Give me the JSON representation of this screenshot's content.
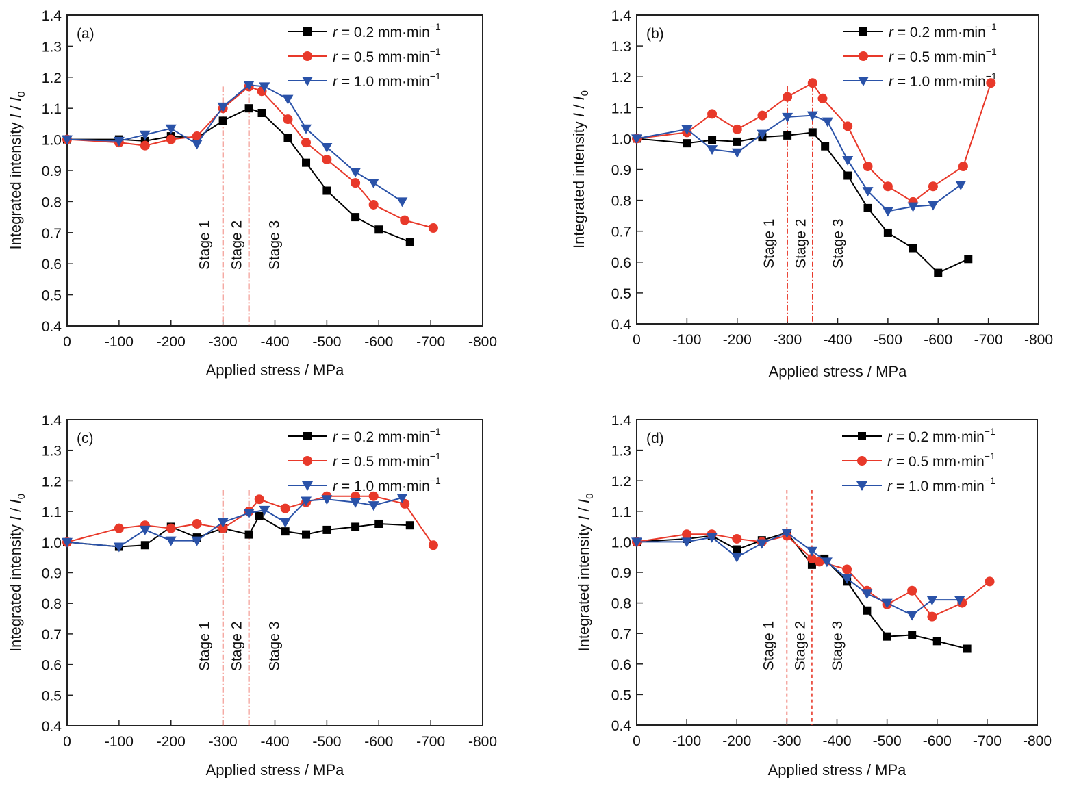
{
  "chart_data": [
    {
      "type": "line",
      "panel_label": "(a)",
      "xlabel": "Applied stress / MPa",
      "ylabel": "Integrated intensity I / I0",
      "xlim": [
        0,
        -800
      ],
      "ylim": [
        0.4,
        1.4
      ],
      "xticks": [
        0,
        -100,
        -200,
        -300,
        -400,
        -500,
        -600,
        -700,
        -800
      ],
      "xtick_labels": [
        "0",
        "-100",
        "-200",
        "-300",
        "-400",
        "-500",
        "-600",
        "-700",
        "-800"
      ],
      "yticks": [
        0.4,
        0.5,
        0.6,
        0.7,
        0.8,
        0.9,
        1.0,
        1.1,
        1.2,
        1.3,
        1.4
      ],
      "ytick_labels": [
        "0.4",
        "0.5",
        "0.6",
        "0.7",
        "0.8",
        "0.9",
        "1.0",
        "1.1",
        "1.2",
        "1.3",
        "1.4"
      ],
      "grid": false,
      "legend_position": "top-right",
      "stage_lines": [
        -300,
        -350
      ],
      "stage_line_style": "dash-dot",
      "stage_labels": [
        "Stage 1",
        "Stage 2",
        "Stage 3"
      ],
      "series": [
        {
          "name": "r = 0.2 mm·min⁻¹",
          "color": "#000000",
          "marker": "square",
          "x": [
            0,
            -100,
            -150,
            -200,
            -250,
            -300,
            -350,
            -375,
            -425,
            -460,
            -500,
            -555,
            -600,
            -660
          ],
          "y": [
            1.0,
            1.0,
            0.995,
            1.01,
            1.005,
            1.06,
            1.1,
            1.085,
            1.005,
            0.925,
            0.835,
            0.75,
            0.71,
            0.67
          ]
        },
        {
          "name": "r = 0.5 mm·min⁻¹",
          "color": "#e8392a",
          "marker": "circle",
          "x": [
            0,
            -100,
            -150,
            -200,
            -250,
            -300,
            -350,
            -375,
            -425,
            -460,
            -500,
            -555,
            -590,
            -650,
            -705
          ],
          "y": [
            1.0,
            0.99,
            0.98,
            1.0,
            1.01,
            1.1,
            1.17,
            1.155,
            1.065,
            0.99,
            0.935,
            0.86,
            0.79,
            0.74,
            0.715
          ]
        },
        {
          "name": "r = 1.0 mm·min⁻¹",
          "color": "#2a52a8",
          "marker": "triangle-down",
          "x": [
            0,
            -100,
            -150,
            -200,
            -250,
            -300,
            -350,
            -380,
            -425,
            -460,
            -500,
            -555,
            -590,
            -645
          ],
          "y": [
            1.0,
            0.995,
            1.015,
            1.035,
            0.985,
            1.105,
            1.175,
            1.17,
            1.13,
            1.035,
            0.975,
            0.895,
            0.86,
            0.8
          ]
        }
      ]
    },
    {
      "type": "line",
      "panel_label": "(b)",
      "xlabel": "Applied stress / MPa",
      "ylabel": "Integrated intensity I / I0",
      "xlim": [
        0,
        -800
      ],
      "ylim": [
        0.4,
        1.4
      ],
      "xticks": [
        0,
        -100,
        -200,
        -300,
        -400,
        -500,
        -600,
        -700,
        -800
      ],
      "xtick_labels": [
        "0",
        "-100",
        "-200",
        "-300",
        "-400",
        "-500",
        "-600",
        "-700",
        "-800"
      ],
      "yticks": [
        0.4,
        0.5,
        0.6,
        0.7,
        0.8,
        0.9,
        1.0,
        1.1,
        1.2,
        1.3,
        1.4
      ],
      "ytick_labels": [
        "0.4",
        "0.5",
        "0.6",
        "0.7",
        "0.8",
        "0.9",
        "1.0",
        "1.1",
        "1.2",
        "1.3",
        "1.4"
      ],
      "grid": false,
      "legend_position": "top-right",
      "stage_lines": [
        -300,
        -350
      ],
      "stage_line_style": "dash-dot",
      "stage_labels": [
        "Stage 1",
        "Stage 2",
        "Stage 3"
      ],
      "series": [
        {
          "name": "r = 0.2 mm·min⁻¹",
          "color": "#000000",
          "marker": "square",
          "x": [
            0,
            -100,
            -150,
            -200,
            -250,
            -300,
            -350,
            -375,
            -420,
            -460,
            -500,
            -550,
            -600,
            -660
          ],
          "y": [
            1.0,
            0.985,
            0.995,
            0.99,
            1.005,
            1.01,
            1.02,
            0.975,
            0.88,
            0.775,
            0.695,
            0.645,
            0.565,
            0.61
          ]
        },
        {
          "name": "r = 0.5 mm·min⁻¹",
          "color": "#e8392a",
          "marker": "circle",
          "x": [
            0,
            -100,
            -150,
            -200,
            -250,
            -300,
            -350,
            -370,
            -420,
            -460,
            -500,
            -550,
            -590,
            -650,
            -705
          ],
          "y": [
            1.0,
            1.02,
            1.08,
            1.03,
            1.075,
            1.135,
            1.18,
            1.13,
            1.04,
            0.91,
            0.845,
            0.795,
            0.845,
            0.91,
            1.18
          ]
        },
        {
          "name": "r = 1.0 mm·min⁻¹",
          "color": "#2a52a8",
          "marker": "triangle-down",
          "x": [
            0,
            -100,
            -150,
            -200,
            -250,
            -300,
            -350,
            -380,
            -420,
            -460,
            -500,
            -550,
            -590,
            -645
          ],
          "y": [
            1.0,
            1.03,
            0.965,
            0.955,
            1.015,
            1.07,
            1.075,
            1.055,
            0.93,
            0.83,
            0.765,
            0.78,
            0.785,
            0.85
          ]
        }
      ]
    },
    {
      "type": "line",
      "panel_label": "(c)",
      "xlabel": "Applied stress / MPa",
      "ylabel": "Integrated intensity I / I0",
      "xlim": [
        0,
        -800
      ],
      "ylim": [
        0.4,
        1.4
      ],
      "xticks": [
        0,
        -100,
        -200,
        -300,
        -400,
        -500,
        -600,
        -700,
        -800
      ],
      "xtick_labels": [
        "0",
        "-100",
        "-200",
        "-300",
        "-400",
        "-500",
        "-600",
        "-700",
        "-800"
      ],
      "yticks": [
        0.4,
        0.5,
        0.6,
        0.7,
        0.8,
        0.9,
        1.0,
        1.1,
        1.2,
        1.3,
        1.4
      ],
      "ytick_labels": [
        "0.4",
        "0.5",
        "0.6",
        "0.7",
        "0.8",
        "0.9",
        "1.0",
        "1.1",
        "1.2",
        "1.3",
        "1.4"
      ],
      "grid": false,
      "legend_position": "top-right",
      "stage_lines": [
        -300,
        -350
      ],
      "stage_line_style": "dash-dot",
      "stage_labels": [
        "Stage 1",
        "Stage 2",
        "Stage 3"
      ],
      "series": [
        {
          "name": "r = 0.2 mm·min⁻¹",
          "color": "#000000",
          "marker": "square",
          "x": [
            0,
            -100,
            -150,
            -200,
            -250,
            -300,
            -350,
            -370,
            -420,
            -460,
            -500,
            -555,
            -600,
            -660
          ],
          "y": [
            1.0,
            0.985,
            0.99,
            1.05,
            1.015,
            1.045,
            1.025,
            1.085,
            1.035,
            1.025,
            1.04,
            1.05,
            1.06,
            1.055
          ]
        },
        {
          "name": "r = 0.5 mm·min⁻¹",
          "color": "#e8392a",
          "marker": "circle",
          "x": [
            0,
            -100,
            -150,
            -200,
            -250,
            -300,
            -350,
            -370,
            -420,
            -460,
            -500,
            -555,
            -590,
            -650,
            -705
          ],
          "y": [
            1.0,
            1.045,
            1.055,
            1.045,
            1.06,
            1.045,
            1.1,
            1.14,
            1.11,
            1.13,
            1.15,
            1.15,
            1.15,
            1.125,
            0.99
          ]
        },
        {
          "name": "r = 1.0 mm·min⁻¹",
          "color": "#2a52a8",
          "marker": "triangle-down",
          "x": [
            0,
            -100,
            -150,
            -200,
            -250,
            -300,
            -350,
            -380,
            -420,
            -460,
            -500,
            -555,
            -590,
            -645
          ],
          "y": [
            1.0,
            0.985,
            1.04,
            1.005,
            1.005,
            1.065,
            1.095,
            1.105,
            1.065,
            1.135,
            1.14,
            1.13,
            1.12,
            1.145
          ]
        }
      ]
    },
    {
      "type": "line",
      "panel_label": "(d)",
      "xlabel": "Applied stress / MPa",
      "ylabel": "Integrated intensity I / I0",
      "xlim": [
        0,
        -800
      ],
      "ylim": [
        0.4,
        1.4
      ],
      "xticks": [
        0,
        -100,
        -200,
        -300,
        -400,
        -500,
        -600,
        -700,
        -800
      ],
      "xtick_labels": [
        "0",
        "-100",
        "-200",
        "-300",
        "-400",
        "-500",
        "-600",
        "-700",
        "-800"
      ],
      "yticks": [
        0.4,
        0.5,
        0.6,
        0.7,
        0.8,
        0.9,
        1.0,
        1.1,
        1.2,
        1.3,
        1.4
      ],
      "ytick_labels": [
        "0.4",
        "0.5",
        "0.6",
        "0.7",
        "0.8",
        "0.9",
        "1.0",
        "1.1",
        "1.2",
        "1.3",
        "1.4"
      ],
      "grid": false,
      "legend_position": "top-right",
      "stage_lines": [
        -300,
        -350
      ],
      "stage_line_style": "dashed",
      "stage_labels": [
        "Stage 1",
        "Stage 2",
        "Stage 3"
      ],
      "series": [
        {
          "name": "r = 0.2 mm·min⁻¹",
          "color": "#000000",
          "marker": "square",
          "x": [
            0,
            -100,
            -150,
            -200,
            -250,
            -300,
            -350,
            -375,
            -420,
            -460,
            -500,
            -550,
            -600,
            -660
          ],
          "y": [
            1.0,
            1.01,
            1.02,
            0.975,
            1.005,
            1.03,
            0.925,
            0.945,
            0.87,
            0.775,
            0.69,
            0.695,
            0.675,
            0.65
          ]
        },
        {
          "name": "r = 0.5 mm·min⁻¹",
          "color": "#e8392a",
          "marker": "circle",
          "x": [
            0,
            -100,
            -150,
            -200,
            -250,
            -300,
            -350,
            -365,
            -420,
            -460,
            -500,
            -550,
            -590,
            -650,
            -705
          ],
          "y": [
            1.0,
            1.025,
            1.025,
            1.01,
            1.0,
            1.02,
            0.945,
            0.935,
            0.91,
            0.84,
            0.795,
            0.84,
            0.755,
            0.8,
            0.87
          ]
        },
        {
          "name": "r = 1.0 mm·min⁻¹",
          "color": "#2a52a8",
          "marker": "triangle-down",
          "x": [
            0,
            -100,
            -150,
            -200,
            -250,
            -300,
            -350,
            -380,
            -420,
            -460,
            -500,
            -550,
            -590,
            -645
          ],
          "y": [
            1.0,
            1.0,
            1.015,
            0.95,
            0.995,
            1.03,
            0.97,
            0.935,
            0.88,
            0.83,
            0.8,
            0.76,
            0.81,
            0.81
          ]
        }
      ]
    }
  ]
}
